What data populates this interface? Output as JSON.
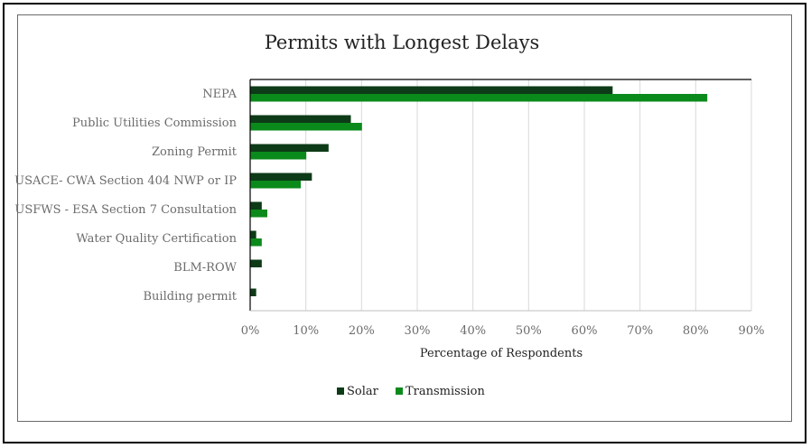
{
  "chart_data": {
    "type": "bar",
    "orientation": "horizontal",
    "title": "Permits with Longest Delays",
    "xlabel": "Percentage of Respondents",
    "ylabel": "",
    "xlim": [
      0,
      90
    ],
    "xticks": [
      0,
      10,
      20,
      30,
      40,
      50,
      60,
      70,
      80,
      90
    ],
    "xtick_labels": [
      "0%",
      "10%",
      "20%",
      "30%",
      "40%",
      "50%",
      "60%",
      "70%",
      "80%",
      "90%"
    ],
    "categories": [
      "NEPA",
      "Public Utilities Commission",
      "Zoning Permit",
      "USACE- CWA Section 404 NWP or IP",
      "USFWS - ESA Section 7 Consultation",
      "Water Quality Certification",
      "BLM-ROW",
      "Building permit"
    ],
    "series": [
      {
        "name": "Solar",
        "color": "#0d3b17",
        "values": [
          65,
          18,
          14,
          11,
          2,
          1,
          2,
          1
        ]
      },
      {
        "name": "Transmission",
        "color": "#0b8a1c",
        "values": [
          82,
          20,
          10,
          9,
          3,
          2,
          0,
          0
        ]
      }
    ],
    "grid": "vertical",
    "legend_position": "bottom-center"
  }
}
